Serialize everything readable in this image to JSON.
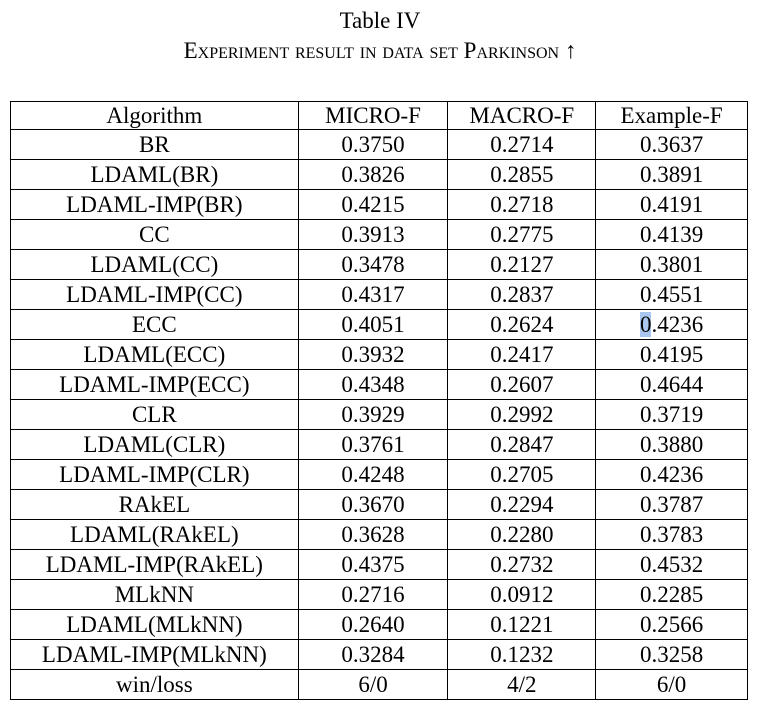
{
  "caption": {
    "title": "Table IV",
    "subtitle": "Experiment result in data set Parkinson ↑"
  },
  "table": {
    "columns": [
      "Algorithm",
      "MICRO-F",
      "MACRO-F",
      "Example-F"
    ],
    "rows": [
      [
        "BR",
        "0.3750",
        "0.2714",
        "0.3637"
      ],
      [
        "LDAML(BR)",
        "0.3826",
        "0.2855",
        "0.3891"
      ],
      [
        "LDAML-IMP(BR)",
        "0.4215",
        "0.2718",
        "0.4191"
      ],
      [
        "CC",
        "0.3913",
        "0.2775",
        "0.4139"
      ],
      [
        "LDAML(CC)",
        "0.3478",
        "0.2127",
        "0.3801"
      ],
      [
        "LDAML-IMP(CC)",
        "0.4317",
        "0.2837",
        "0.4551"
      ],
      [
        "ECC",
        "0.4051",
        "0.2624",
        "0.4236"
      ],
      [
        "LDAML(ECC)",
        "0.3932",
        "0.2417",
        "0.4195"
      ],
      [
        "LDAML-IMP(ECC)",
        "0.4348",
        "0.2607",
        "0.4644"
      ],
      [
        "CLR",
        "0.3929",
        "0.2992",
        "0.3719"
      ],
      [
        "LDAML(CLR)",
        "0.3761",
        "0.2847",
        "0.3880"
      ],
      [
        "LDAML-IMP(CLR)",
        "0.4248",
        "0.2705",
        "0.4236"
      ],
      [
        "RAkEL",
        "0.3670",
        "0.2294",
        "0.3787"
      ],
      [
        "LDAML(RAkEL)",
        "0.3628",
        "0.2280",
        "0.3783"
      ],
      [
        "LDAML-IMP(RAkEL)",
        "0.4375",
        "0.2732",
        "0.4532"
      ],
      [
        "MLkNN",
        "0.2716",
        "0.0912",
        "0.2285"
      ],
      [
        "LDAML(MLkNN)",
        "0.2640",
        "0.1221",
        "0.2566"
      ],
      [
        "LDAML-IMP(MLkNN)",
        "0.3284",
        "0.1232",
        "0.3258"
      ],
      [
        "win/loss",
        "6/0",
        "4/2",
        "6/0"
      ]
    ],
    "bold_cells": [
      [
        8,
        3
      ],
      [
        9,
        2
      ],
      [
        14,
        1
      ],
      [
        18,
        1
      ],
      [
        18,
        2
      ],
      [
        18,
        3
      ]
    ],
    "selection": {
      "row": 6,
      "col": 3,
      "selected_text": "0"
    }
  }
}
